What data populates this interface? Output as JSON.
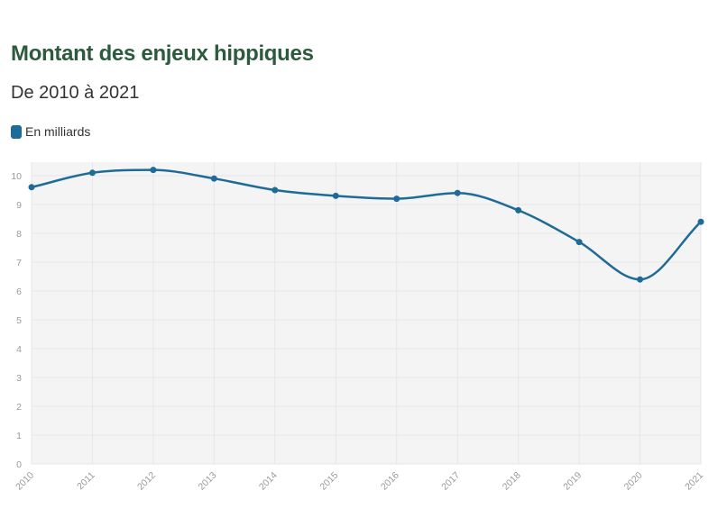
{
  "title": "Montant des enjeux hippiques",
  "subtitle": "De 2010 à 2021",
  "chart_data": {
    "type": "line",
    "title": "Montant des enjeux hippiques",
    "subtitle": "De 2010 à 2021",
    "xlabel": "",
    "ylabel": "",
    "categories": [
      "2010",
      "2011",
      "2012",
      "2013",
      "2014",
      "2015",
      "2016",
      "2017",
      "2018",
      "2019",
      "2020",
      "2021"
    ],
    "series": [
      {
        "name": "En milliards",
        "values": [
          9.6,
          10.1,
          10.2,
          9.9,
          9.5,
          9.3,
          9.2,
          9.4,
          8.8,
          7.7,
          6.4,
          8.4
        ]
      }
    ],
    "ylim": [
      0,
      10.5
    ],
    "yticks": [
      0,
      1,
      2,
      3,
      4,
      5,
      6,
      7,
      8,
      9,
      10
    ],
    "grid": true,
    "legend_position": "top-left",
    "smooth": true
  },
  "colors": {
    "series": "#1f6b98",
    "title": "#2c5a3c",
    "plot_background": "#f4f4f4",
    "grid": "#e6e6e6",
    "tick_text": "#9a9a9a"
  }
}
